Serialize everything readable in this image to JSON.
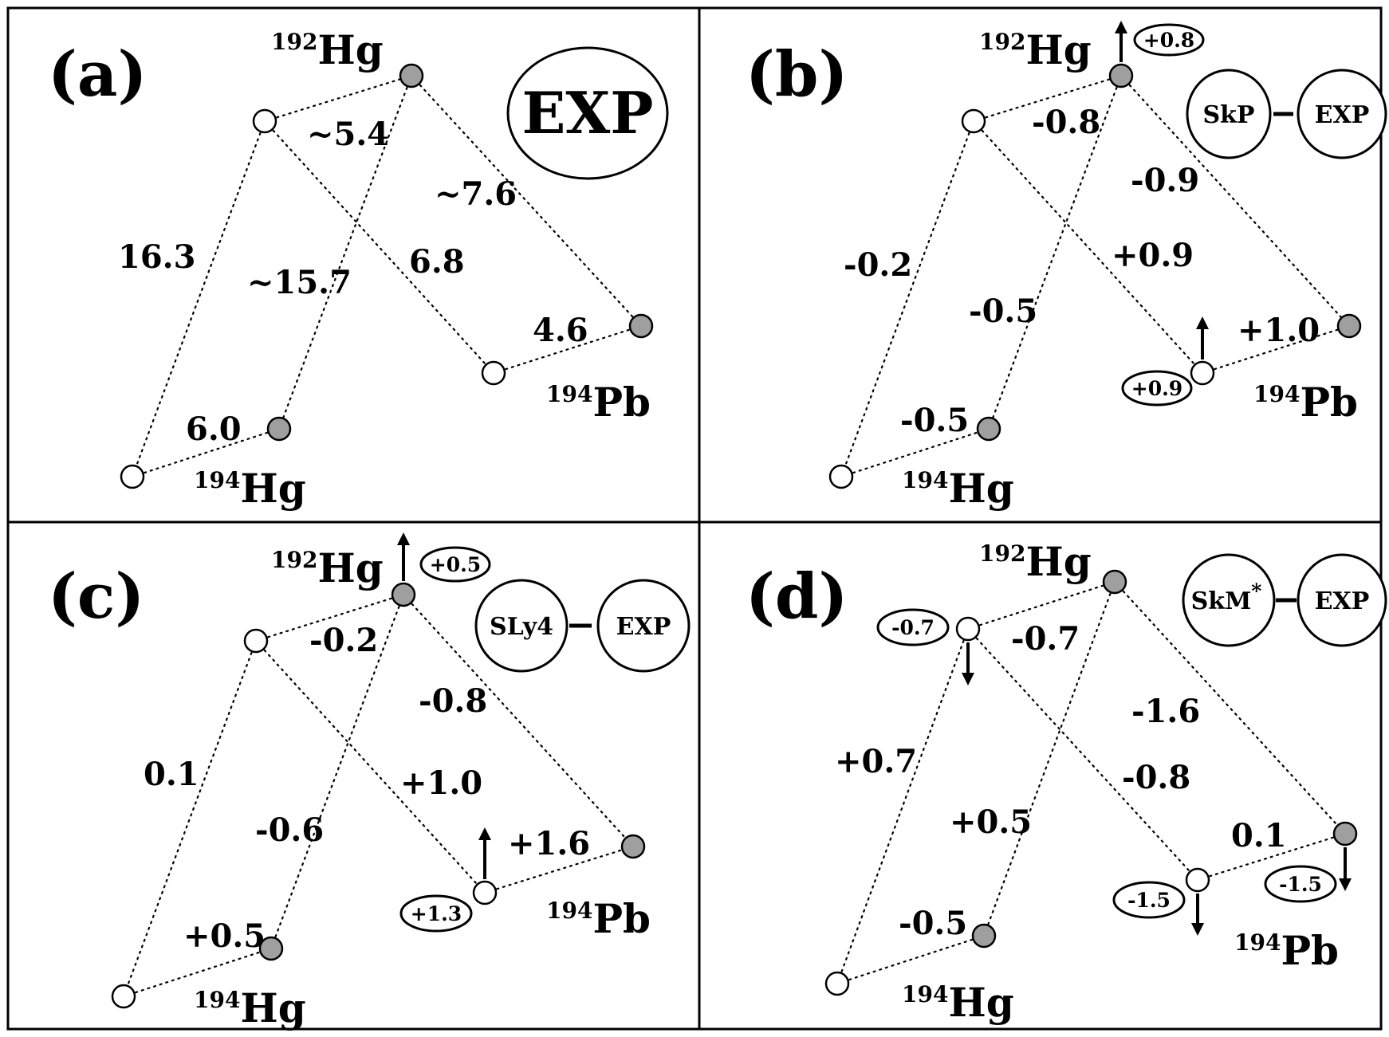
{
  "panels": [
    {
      "id": "a",
      "label": "(a)",
      "nuclei": {
        "hg192": {
          "mass": "192",
          "symbol": "Hg"
        },
        "hg194": {
          "mass": "194",
          "symbol": "Hg"
        },
        "pb194": {
          "mass": "194",
          "symbol": "Pb"
        }
      },
      "edges": {
        "e1": "~5.4",
        "e2": "~7.6",
        "e3": "16.3",
        "e4": "~15.7",
        "e5": "6.8",
        "e6": "4.6",
        "e7": "6.0"
      },
      "badge": {
        "single": "EXP"
      },
      "shifts": {}
    },
    {
      "id": "b",
      "label": "(b)",
      "nuclei": {
        "hg192": {
          "mass": "192",
          "symbol": "Hg"
        },
        "hg194": {
          "mass": "194",
          "symbol": "Hg"
        },
        "pb194": {
          "mass": "194",
          "symbol": "Pb"
        }
      },
      "edges": {
        "e1": "-0.8",
        "e2": "-0.9",
        "e3": "-0.2",
        "e4": "-0.5",
        "e5": "+0.9",
        "e6": "+1.0",
        "e7": "-0.5"
      },
      "badge": {
        "left": "SkP",
        "right": "EXP"
      },
      "shifts": {
        "top_filled": "+0.8",
        "mid_open": "+0.9"
      }
    },
    {
      "id": "c",
      "label": "(c)",
      "nuclei": {
        "hg192": {
          "mass": "192",
          "symbol": "Hg"
        },
        "hg194": {
          "mass": "194",
          "symbol": "Hg"
        },
        "pb194": {
          "mass": "194",
          "symbol": "Pb"
        }
      },
      "edges": {
        "e1": "-0.2",
        "e2": "-0.8",
        "e3": "0.1",
        "e4": "-0.6",
        "e5": "+1.0",
        "e6": "+1.6",
        "e7": "+0.5"
      },
      "badge": {
        "left": "SLy4",
        "right": "EXP"
      },
      "shifts": {
        "top_filled": "+0.5",
        "mid_open": "+1.3"
      }
    },
    {
      "id": "d",
      "label": "(d)",
      "nuclei": {
        "hg192": {
          "mass": "192",
          "symbol": "Hg"
        },
        "hg194": {
          "mass": "194",
          "symbol": "Hg"
        },
        "pb194": {
          "mass": "194",
          "symbol": "Pb"
        }
      },
      "edges": {
        "e1": "-0.7",
        "e2": "-1.6",
        "e3": "+0.7",
        "e4": "+0.5",
        "e5": "-0.8",
        "e6": "0.1",
        "e7": "-0.5"
      },
      "badge": {
        "left": "SkM",
        "left_sup": "*",
        "right": "EXP"
      },
      "shifts": {
        "top_open": "-0.7",
        "mid_open": "-1.5",
        "right_filled": "-1.5"
      }
    }
  ]
}
